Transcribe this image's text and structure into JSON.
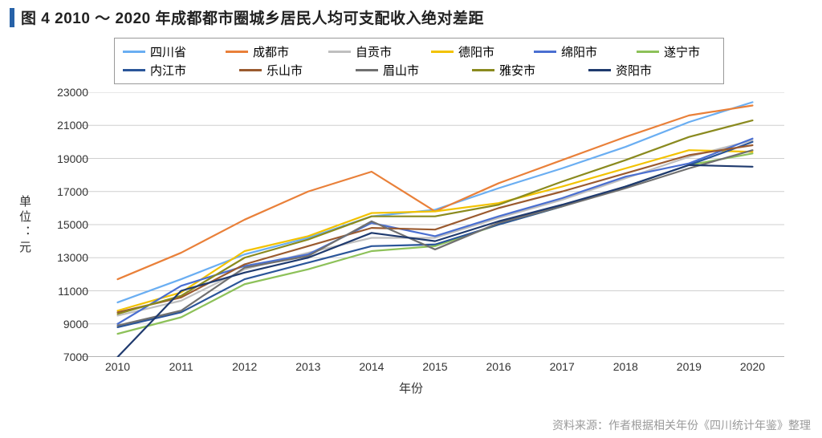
{
  "title": "图 4  2010 ～ 2020 年成都都市圈城乡居民人均可支配收入绝对差距",
  "source": "资料来源：作者根据相关年份《四川统计年鉴》整理",
  "chart": {
    "type": "line",
    "xlabel": "年份",
    "ylabel": "单位：元",
    "categories": [
      "2010",
      "2011",
      "2012",
      "2013",
      "2014",
      "2015",
      "2016",
      "2017",
      "2018",
      "2019",
      "2020"
    ],
    "ylim": [
      7000,
      23000
    ],
    "ytick_step": 2000,
    "background_color": "#ffffff",
    "grid_color": "#cfcfcf",
    "axis_color": "#888888",
    "title_fontsize": 19,
    "label_fontsize": 15,
    "tick_fontsize": 14,
    "line_width": 2.2,
    "series": [
      {
        "name": "四川省",
        "color": "#6aaef2",
        "values": [
          10300,
          11700,
          13200,
          14200,
          15500,
          15900,
          17200,
          18400,
          19700,
          21200,
          22400
        ]
      },
      {
        "name": "成都市",
        "color": "#e98039",
        "values": [
          11700,
          13300,
          15300,
          17000,
          18200,
          15800,
          17500,
          18900,
          20300,
          21600,
          22200
        ]
      },
      {
        "name": "自贡市",
        "color": "#bfbfbf",
        "values": [
          9500,
          10400,
          12300,
          13300,
          14200,
          14200,
          15400,
          16500,
          17800,
          19100,
          20100
        ]
      },
      {
        "name": "德阳市",
        "color": "#f2c200",
        "values": [
          9800,
          10900,
          13400,
          14300,
          15700,
          15800,
          16300,
          17300,
          18400,
          19500,
          19400
        ]
      },
      {
        "name": "绵阳市",
        "color": "#4a6fd1",
        "values": [
          9000,
          11300,
          12500,
          13200,
          15100,
          14300,
          15500,
          16600,
          17900,
          18700,
          20200
        ]
      },
      {
        "name": "遂宁市",
        "color": "#8dc159",
        "values": [
          8400,
          9400,
          11400,
          12300,
          13400,
          13700,
          15000,
          16100,
          17300,
          18600,
          19300
        ]
      },
      {
        "name": "内江市",
        "color": "#2a5599",
        "values": [
          8800,
          9700,
          11700,
          12700,
          13700,
          13800,
          15000,
          16100,
          17300,
          18600,
          20000
        ]
      },
      {
        "name": "乐山市",
        "color": "#9a5a2f",
        "values": [
          9700,
          10600,
          12600,
          13700,
          14800,
          14700,
          16000,
          17000,
          18100,
          19200,
          19800
        ]
      },
      {
        "name": "眉山市",
        "color": "#707070",
        "values": [
          8900,
          9800,
          12400,
          13100,
          15200,
          13500,
          15100,
          16100,
          17200,
          18400,
          19500
        ]
      },
      {
        "name": "雅安市",
        "color": "#8a8a1f",
        "values": [
          9600,
          10700,
          13000,
          14100,
          15500,
          15500,
          16200,
          17600,
          18900,
          20300,
          21300
        ]
      },
      {
        "name": "资阳市",
        "color": "#1f3a6e",
        "values": [
          7000,
          11000,
          12100,
          13000,
          14500,
          14000,
          15200,
          16200,
          17300,
          18600,
          18500
        ]
      }
    ]
  }
}
